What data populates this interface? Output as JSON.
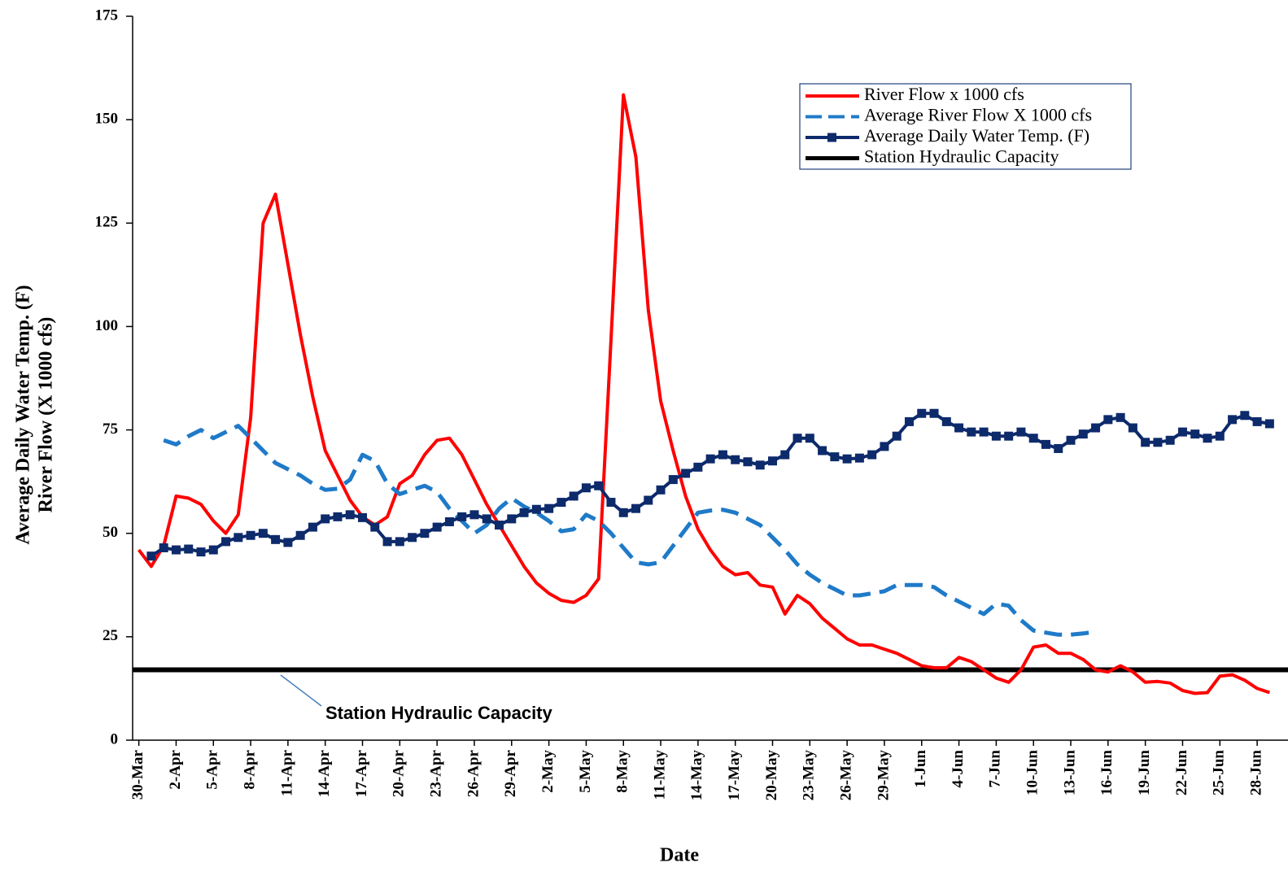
{
  "chart_data": {
    "type": "line",
    "ylabel": [
      "Average Daily Water Temp. (F)",
      "River Flow (X 1000 cfs)"
    ],
    "xlabel": "Date",
    "categories": [
      "30-Mar",
      null,
      null,
      "2-Apr",
      null,
      null,
      "5-Apr",
      null,
      null,
      "8-Apr",
      null,
      null,
      "11-Apr",
      null,
      null,
      "14-Apr",
      null,
      null,
      "17-Apr",
      null,
      null,
      "20-Apr",
      null,
      null,
      "23-Apr",
      null,
      null,
      "26-Apr",
      null,
      null,
      "29-Apr",
      null,
      null,
      "2-May",
      null,
      null,
      "5-May",
      null,
      null,
      "8-May",
      null,
      null,
      "11-May",
      null,
      null,
      "14-May",
      null,
      null,
      "17-May",
      null,
      null,
      "20-May",
      null,
      null,
      "23-May",
      null,
      null,
      "26-May",
      null,
      null,
      "29-May",
      null,
      null,
      "1-Jun",
      null,
      null,
      "4-Jun",
      null,
      null,
      "7-Jun",
      null,
      null,
      "10-Jun",
      null,
      null,
      "13-Jun",
      null,
      null,
      "16-Jun",
      null,
      null,
      "19-Jun",
      null,
      null,
      "22-Jun",
      null,
      null,
      "25-Jun",
      null,
      null,
      "28-Jun",
      null
    ],
    "series": [
      {
        "name": "River Flow x 1000 cfs",
        "color": "#ff0000",
        "style": "solid",
        "values": [
          46,
          42,
          47,
          59,
          58.5,
          57,
          53,
          50,
          54.5,
          78,
          125,
          132,
          115,
          98,
          83,
          70,
          64,
          58,
          54,
          52,
          54,
          62,
          64,
          69,
          72.5,
          73,
          69,
          63,
          57,
          52,
          47,
          42,
          38,
          35.5,
          33.8,
          33.3,
          35,
          39,
          97,
          156,
          141,
          104,
          82,
          70,
          59,
          51,
          46,
          42,
          40,
          40.5,
          37.5,
          37,
          30.5,
          35,
          33,
          29.5,
          27,
          24.5,
          23,
          23,
          22,
          21,
          19.5,
          18,
          17.5,
          17.5,
          20,
          19,
          17,
          15,
          14,
          17,
          22.5,
          23,
          21,
          21,
          19.5,
          17,
          16.5,
          18,
          16.5,
          14,
          14.2,
          13.8,
          12,
          11.3,
          11.5,
          15.5,
          15.8,
          14.5,
          12.5,
          11.5
        ]
      },
      {
        "name": "Average River Flow X 1000 cfs",
        "color": "#1f7ac8",
        "style": "dashed",
        "values": [
          null,
          null,
          72.5,
          71.5,
          73.5,
          75,
          73,
          74.5,
          76,
          73,
          70,
          67,
          65.5,
          64,
          62,
          60.5,
          60.8,
          63,
          69,
          67.5,
          62,
          59.5,
          60.5,
          61.5,
          60,
          56,
          53,
          50,
          52,
          56,
          58.5,
          56.5,
          55,
          53,
          50.5,
          51,
          54.5,
          53,
          50,
          46.5,
          43,
          42.5,
          43,
          47,
          51,
          55,
          55.5,
          55.7,
          55,
          53.5,
          52,
          49,
          46,
          42.5,
          40,
          38,
          36.5,
          35,
          35,
          35.5,
          36,
          37.5,
          37.5,
          37.5,
          37,
          35,
          33.5,
          32,
          30.5,
          33,
          32.5,
          29,
          26.5,
          26,
          25.5,
          25.5,
          25.8,
          26.2,
          null,
          null,
          null,
          null,
          null,
          null,
          null,
          null,
          null,
          null,
          null,
          null,
          null,
          null
        ]
      },
      {
        "name": "Average Daily Water Temp. (F)",
        "color": "#0d2a6b",
        "style": "markers",
        "values": [
          null,
          44.5,
          46.5,
          46,
          46.2,
          45.5,
          46,
          48,
          49,
          49.5,
          50,
          48.5,
          47.8,
          49.5,
          51.5,
          53.5,
          54,
          54.5,
          53.8,
          51.5,
          48,
          48,
          49,
          50,
          51.5,
          52.8,
          54,
          54.5,
          53.5,
          52,
          53.5,
          55,
          55.8,
          56,
          57.5,
          59,
          61,
          61.5,
          57.5,
          55,
          56,
          58,
          60.5,
          63,
          64.5,
          66,
          68,
          69,
          67.8,
          67.3,
          66.5,
          67.5,
          69,
          73,
          73,
          70,
          68.5,
          68,
          68.2,
          69,
          71,
          73.5,
          77,
          79,
          79,
          77,
          75.5,
          74.5,
          74.5,
          73.5,
          73.5,
          74.5,
          73,
          71.5,
          70.5,
          72.5,
          74,
          75.5,
          77.5,
          78,
          75.5,
          72,
          72,
          72.5,
          74.5,
          74,
          73,
          73.5,
          77.5,
          78.5,
          77,
          76.5
        ]
      }
    ],
    "reference_line": {
      "name": "Station Hydraulic Capacity",
      "value": 17,
      "color": "#000000"
    },
    "annotation": "Station Hydraulic Capacity",
    "ylim": [
      0,
      175
    ],
    "yticks": [
      0,
      25,
      50,
      75,
      100,
      125,
      150,
      175
    ],
    "grid": false,
    "legend": "upper right"
  }
}
